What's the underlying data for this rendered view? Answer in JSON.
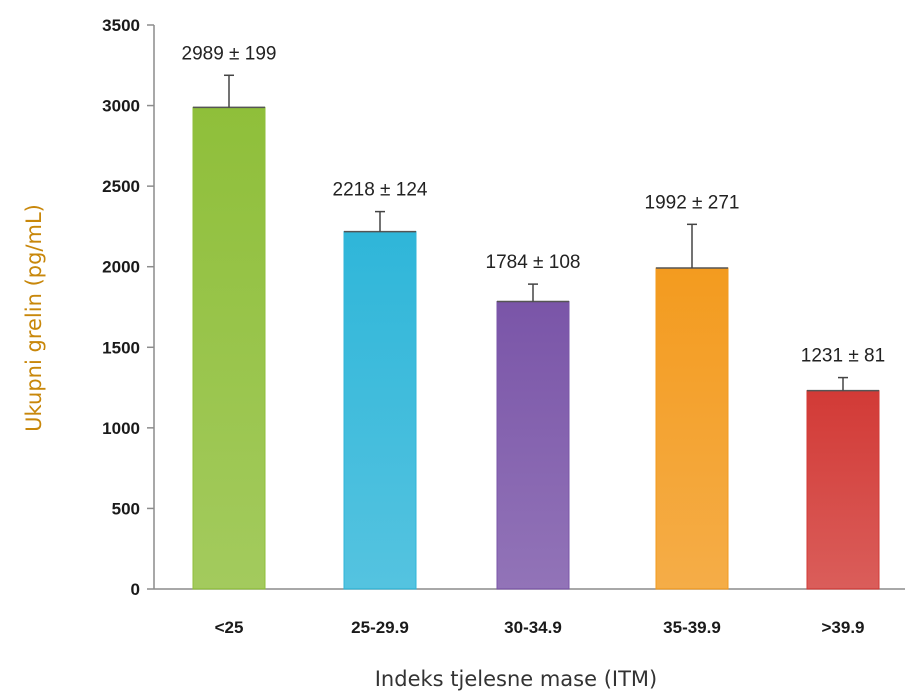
{
  "chart_data": {
    "type": "bar",
    "categories": [
      "<25",
      "25-29.9",
      "30-34.9",
      "35-39.9",
      ">39.9"
    ],
    "values": [
      2989,
      2218,
      1784,
      1992,
      1231
    ],
    "errors": [
      199,
      124,
      108,
      271,
      81
    ],
    "data_labels": [
      "2989 ± 199",
      "2218 ± 124",
      "1784 ± 108",
      "1992 ± 271",
      "1231 ± 81"
    ],
    "colors": [
      "#8fbf3a",
      "#2fb6d9",
      "#7a55a8",
      "#f39b1f",
      "#d23a36"
    ],
    "xlabel": "Indeks tjelesne mase (ITM)",
    "ylabel": "Ukupni grelin (pg/mL)",
    "ylim": [
      0,
      3500
    ],
    "yticks": [
      "0",
      "500",
      "1000",
      "1500",
      "2000",
      "2500",
      "3000",
      "3500"
    ],
    "grid": false,
    "legend": "none"
  }
}
